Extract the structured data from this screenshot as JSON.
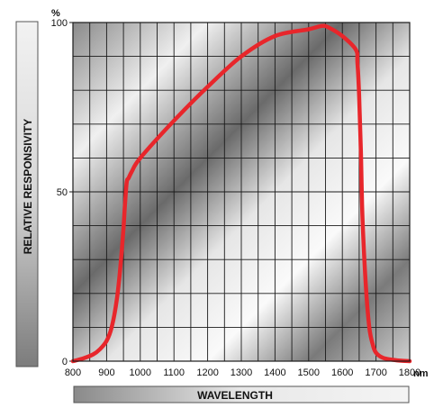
{
  "chart_data": {
    "type": "line",
    "xlabel": "WAVELENGTH",
    "ylabel": "RELATIVE RESPONSIVITY",
    "x_unit": "nm",
    "y_unit": "%",
    "xlim": [
      800,
      1800
    ],
    "ylim": [
      0,
      100
    ],
    "x_ticks": [
      "800",
      "900",
      "1000",
      "1100",
      "1200",
      "1300",
      "1400",
      "1500",
      "1600",
      "1700",
      "1800"
    ],
    "y_ticks": [
      "0",
      "50",
      "100"
    ],
    "grid": true,
    "colors": {
      "line": "#e8262b",
      "grid": "#1a1a1a"
    },
    "series": [
      {
        "x": [
          800,
          830,
          860,
          880,
          900,
          915,
          930,
          940,
          950,
          955,
          960,
          965,
          975,
          1000,
          1100,
          1200,
          1300,
          1400,
          1500,
          1540,
          1560,
          1600,
          1640,
          1645,
          1650,
          1655,
          1660,
          1670,
          1680,
          1690,
          1700,
          1720,
          1750,
          1780,
          1800
        ],
        "y": [
          0,
          0.8,
          2,
          3.5,
          6,
          10,
          18,
          27,
          39,
          47,
          53,
          54,
          56,
          60,
          71,
          81,
          90,
          96,
          98,
          99,
          98.5,
          96,
          92,
          88,
          78,
          62,
          42,
          22,
          10,
          5,
          2.5,
          1,
          0.4,
          0.1,
          0
        ]
      }
    ]
  }
}
